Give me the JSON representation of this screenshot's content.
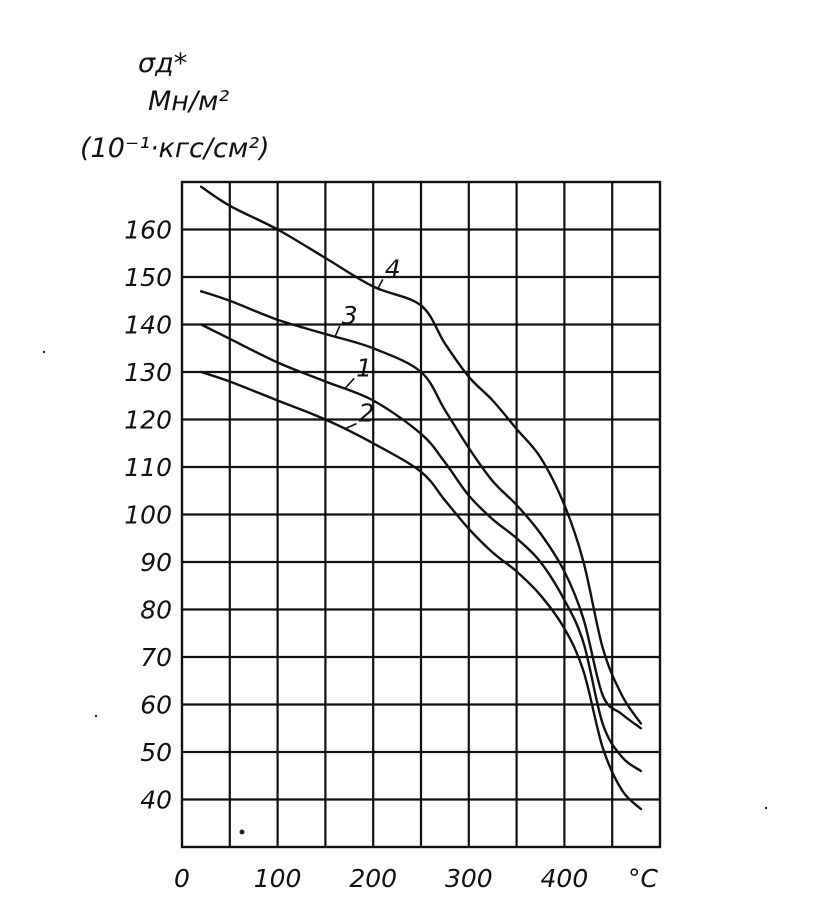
{
  "chart_data": {
    "type": "line",
    "title": "",
    "ylabel_lines": [
      "σд*",
      "Мн/м²",
      "(10⁻¹·кгс/см²)"
    ],
    "xlabel": "°C",
    "x_ticks": [
      0,
      100,
      200,
      300,
      400
    ],
    "y_ticks": [
      40,
      50,
      60,
      70,
      80,
      90,
      100,
      110,
      120,
      130,
      140,
      150,
      160
    ],
    "xlim": [
      0,
      500
    ],
    "ylim": [
      30,
      170
    ],
    "grid": true,
    "series": [
      {
        "name": "1",
        "x": [
          20,
          50,
          100,
          150,
          200,
          250,
          275,
          300,
          325,
          350,
          375,
          400,
          420,
          440,
          460,
          480
        ],
        "y": [
          140,
          137,
          132,
          128,
          124,
          117,
          111,
          104,
          99,
          95,
          90,
          82,
          73,
          56,
          49,
          46
        ]
      },
      {
        "name": "2",
        "x": [
          20,
          50,
          100,
          150,
          200,
          250,
          275,
          300,
          325,
          350,
          375,
          400,
          420,
          440,
          460,
          480
        ],
        "y": [
          130,
          128,
          124,
          120,
          115,
          109,
          103,
          97,
          92,
          88,
          83,
          76,
          67,
          51,
          42,
          38
        ]
      },
      {
        "name": "3",
        "x": [
          20,
          50,
          100,
          150,
          200,
          250,
          275,
          300,
          325,
          350,
          375,
          400,
          420,
          440,
          460,
          480
        ],
        "y": [
          147,
          145,
          141,
          138,
          135,
          130,
          122,
          114,
          107,
          102,
          96,
          88,
          78,
          62,
          58,
          55
        ]
      },
      {
        "name": "4",
        "x": [
          20,
          50,
          100,
          150,
          200,
          250,
          275,
          300,
          325,
          350,
          375,
          400,
          420,
          440,
          460,
          480
        ],
        "y": [
          169,
          165,
          160,
          154,
          148,
          144,
          136,
          129,
          124,
          118,
          112,
          102,
          90,
          72,
          62,
          56
        ]
      }
    ]
  }
}
